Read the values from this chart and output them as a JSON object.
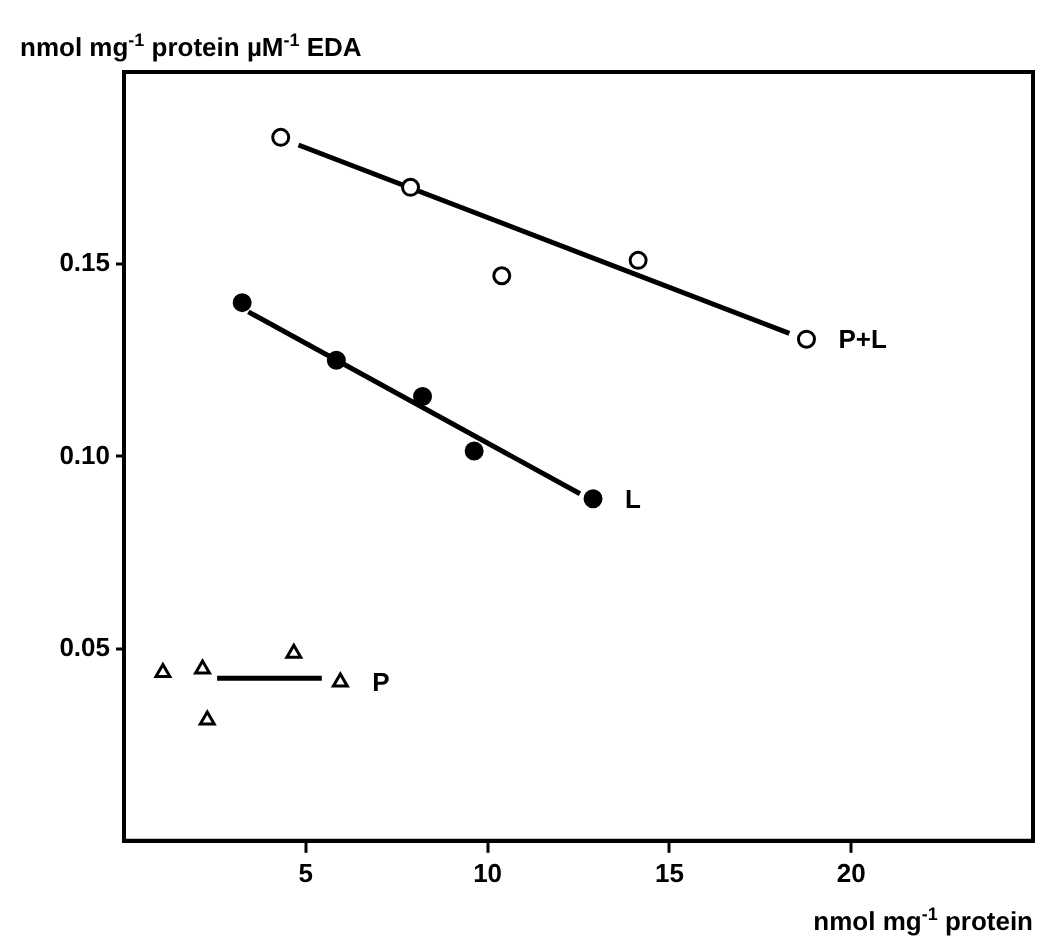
{
  "chart_data": {
    "type": "scatter",
    "xlabel": "nmol mg$^{-1}$ protein",
    "ylabel": "nmol mg$^{-1}$ protein µM$^{-1}$ EDA",
    "xlim": [
      0,
      25
    ],
    "ylim": [
      0,
      0.2
    ],
    "xticks": [
      5,
      10,
      15,
      20
    ],
    "yticks": [
      {
        "value": 0.05,
        "label": "0.05"
      },
      {
        "value": 0.1,
        "label": "0.10"
      },
      {
        "value": 0.15,
        "label": "0.15"
      }
    ],
    "grid": false,
    "legend": false,
    "series": [
      {
        "name": "P+L",
        "color": "#000000",
        "marker": "circle",
        "x": [
          4.31,
          7.88,
          10.39,
          14.14,
          18.77
        ],
        "values": [
          0.183,
          0.17,
          0.147,
          0.151,
          0.1305
        ]
      },
      {
        "name": "L",
        "color": "#000000",
        "marker": "circle",
        "x": [
          3.25,
          5.84,
          8.21,
          9.63,
          12.9
        ],
        "values": [
          0.14,
          0.125,
          0.1156,
          0.1014,
          0.089
        ]
      },
      {
        "name": "P",
        "color": "#000000",
        "marker": "triangle",
        "x": [
          1.07,
          2.16,
          2.29,
          4.67,
          5.95
        ],
        "values": [
          0.0438,
          0.0447,
          0.0314,
          0.0488,
          0.0413
        ]
      },
      {
        "type": "line",
        "color": "#000000",
        "x": [
          4.8,
          18.3
        ],
        "values": [
          0.181,
          0.132
        ]
      },
      {
        "type": "line",
        "color": "#000000",
        "x": [
          3.42,
          12.54
        ],
        "values": [
          0.1376,
          0.0903
        ]
      },
      {
        "type": "line",
        "color": "#000000",
        "x": [
          2.56,
          5.44
        ],
        "values": [
          0.0423,
          0.0423
        ]
      }
    ]
  }
}
